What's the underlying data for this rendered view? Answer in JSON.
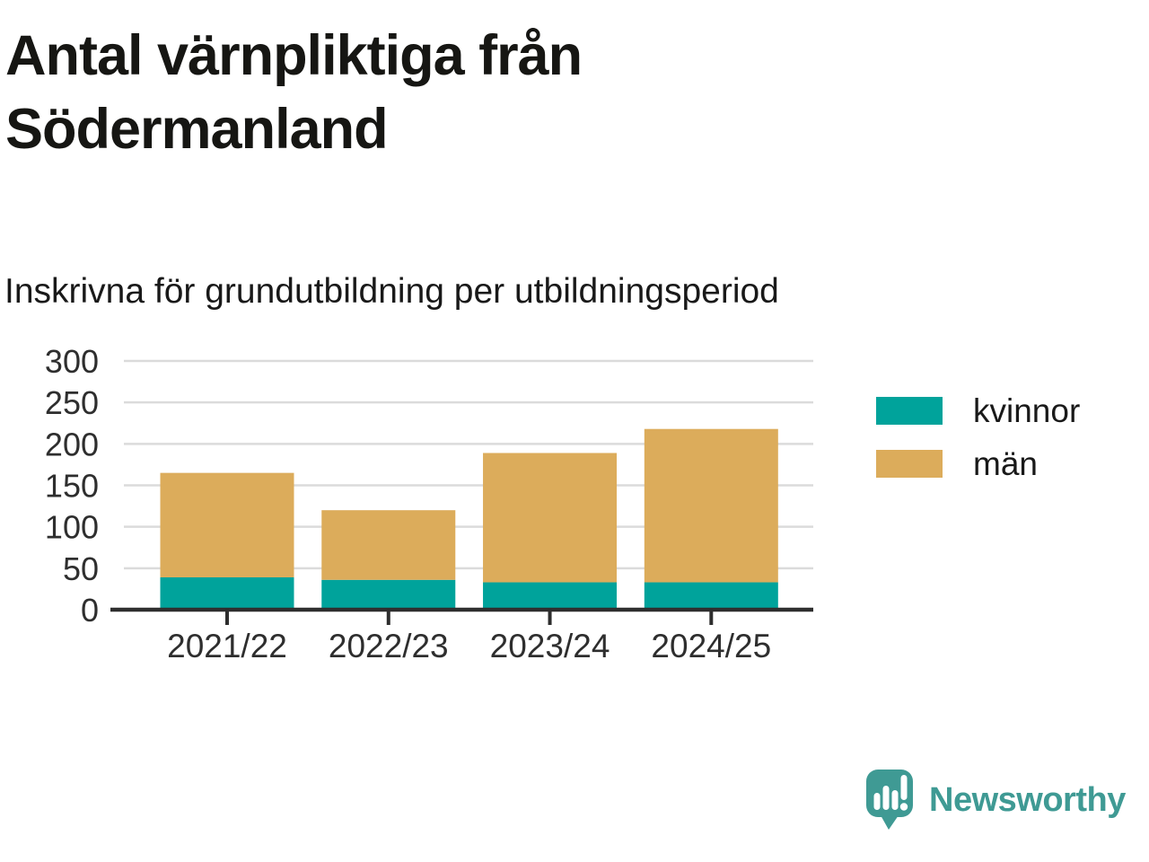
{
  "title": "Antal värnpliktiga från Södermanland",
  "subtitle": "Inskrivna för grundutbildning per utbildningsperiod",
  "branding": {
    "logo_text": "Newsworthy"
  },
  "colors": {
    "kvinnor": "#00A39B",
    "man": "#DCAC5B",
    "brand": "#3F9A94",
    "grid": "#DBDBDB",
    "axis": "#2E2E2E",
    "tick_label": "#2E2E2E",
    "legend_label": "#191919",
    "title_text": "#161613",
    "background": "#FFFFFF"
  },
  "chart_data": {
    "type": "bar",
    "stacked": true,
    "title": "Antal värnpliktiga från Södermanland",
    "subtitle": "Inskrivna för grundutbildning per utbildningsperiod",
    "categories": [
      "2021/22",
      "2022/23",
      "2023/24",
      "2024/25"
    ],
    "series": [
      {
        "name": "kvinnor",
        "color": "#00A39B",
        "values": [
          39,
          36,
          33,
          33
        ]
      },
      {
        "name": "män",
        "color": "#DCAC5B",
        "values": [
          126,
          84,
          156,
          185
        ]
      }
    ],
    "stacked_totals": [
      165,
      120,
      189,
      218
    ],
    "xlabel": "",
    "ylabel": "",
    "ylim": [
      0,
      300
    ],
    "yticks": [
      0,
      50,
      100,
      150,
      200,
      250,
      300
    ],
    "grid": true,
    "legend_position": "right"
  }
}
